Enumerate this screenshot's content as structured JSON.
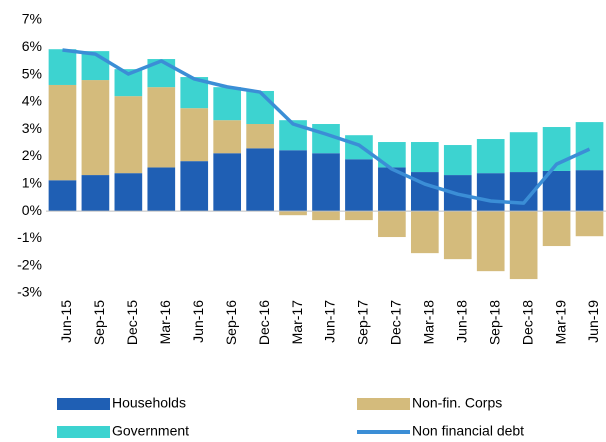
{
  "chart_data": {
    "type": "bar",
    "categories": [
      "Jun-15",
      "Sep-15",
      "Dec-15",
      "Mar-16",
      "Jun-16",
      "Sep-16",
      "Dec-16",
      "Mar-17",
      "Jun-17",
      "Sep-17",
      "Dec-17",
      "Mar-18",
      "Jun-18",
      "Sep-18",
      "Dec-18",
      "Mar-19",
      "Jun-19"
    ],
    "series": [
      {
        "name": "Households",
        "type": "bar",
        "color": "#1f5fb4",
        "values": [
          1.13,
          1.32,
          1.39,
          1.6,
          1.83,
          2.12,
          2.3,
          2.23,
          2.12,
          1.9,
          1.6,
          1.43,
          1.32,
          1.39,
          1.43,
          1.47,
          1.5
        ]
      },
      {
        "name": "Non-fin. Corps",
        "type": "bar",
        "color": "#d4bb7c",
        "values": [
          3.49,
          3.48,
          2.82,
          2.94,
          1.94,
          1.21,
          0.89,
          -0.15,
          -0.33,
          -0.33,
          -0.95,
          -1.54,
          -1.76,
          -2.2,
          -2.49,
          -1.28,
          -0.92
        ]
      },
      {
        "name": "Government",
        "type": "bar",
        "color": "#3dd3d0",
        "values": [
          1.31,
          1.06,
          0.99,
          1.03,
          1.14,
          1.21,
          1.21,
          1.1,
          1.07,
          0.88,
          0.93,
          1.1,
          1.1,
          1.25,
          1.46,
          1.61,
          1.76
        ]
      },
      {
        "name": "Non financial debt",
        "type": "line",
        "color": "#3b8ed6",
        "values": [
          5.9,
          5.75,
          5.02,
          5.5,
          4.84,
          4.55,
          4.36,
          3.19,
          2.82,
          2.42,
          1.54,
          0.99,
          0.62,
          0.37,
          0.29,
          1.72,
          2.27
        ]
      }
    ],
    "ylim": [
      -3,
      7
    ],
    "yticks": [
      {
        "value": -3,
        "label": "-3%"
      },
      {
        "value": -2,
        "label": "-2%"
      },
      {
        "value": -1,
        "label": "-1%"
      },
      {
        "value": 0,
        "label": "0%"
      },
      {
        "value": 1,
        "label": "1%"
      },
      {
        "value": 2,
        "label": "2%"
      },
      {
        "value": 3,
        "label": "3%"
      },
      {
        "value": 4,
        "label": "4%"
      },
      {
        "value": 5,
        "label": "5%"
      },
      {
        "value": 6,
        "label": "6%"
      },
      {
        "value": 7,
        "label": "7%"
      }
    ]
  }
}
